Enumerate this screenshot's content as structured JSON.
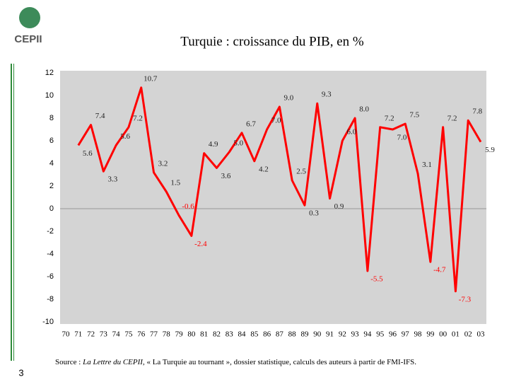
{
  "logo": "CEPII",
  "page_number": "3",
  "source": {
    "prefix": "Source : ",
    "italic": "La Lettre du CEPII",
    "rest": ", « La Turquie au tournant », dossier statistique, calculs des auteurs à partir de FMI-IFS."
  },
  "chart_data": {
    "type": "line",
    "title": "Turquie : croissance du PIB, en %",
    "categories": [
      "70",
      "71",
      "72",
      "73",
      "74",
      "75",
      "76",
      "77",
      "78",
      "79",
      "80",
      "81",
      "82",
      "83",
      "84",
      "85",
      "86",
      "87",
      "88",
      "89",
      "90",
      "91",
      "92",
      "93",
      "94",
      "95",
      "96",
      "97",
      "98",
      "99",
      "00",
      "01",
      "02",
      "03"
    ],
    "series": [
      {
        "name": null,
        "color": "#ff0000",
        "values": [
          null,
          5.6,
          7.4,
          3.3,
          5.6,
          7.2,
          10.7,
          3.2,
          1.5,
          -0.6,
          -2.4,
          4.9,
          3.6,
          5.0,
          6.7,
          4.2,
          7.0,
          9.0,
          2.5,
          0.3,
          9.3,
          0.9,
          6.0,
          8.0,
          -5.5,
          7.2,
          7.0,
          7.5,
          3.1,
          -4.7,
          7.2,
          -7.3,
          7.8,
          5.9
        ],
        "value_labels": [
          null,
          "5.6",
          "7.4",
          "3.3",
          "5.6",
          "7.2",
          "10.7",
          "3.2",
          "1.5",
          "-0.6",
          "-2.4",
          "4.9",
          "3.6",
          "5.0",
          "6.7",
          "4.2",
          "7.0",
          "9.0",
          "2.5",
          "0.3",
          "9.3",
          "0.9",
          "6.0",
          "8.0",
          "-5.5",
          "7.2",
          "7.0",
          "7.5",
          "3.1",
          "-4.7",
          "7.2",
          "-7.3",
          "7.8",
          "5.9"
        ]
      }
    ],
    "ylim": [
      -10,
      12
    ],
    "yticks": [
      -10,
      -8,
      -6,
      -4,
      -2,
      0,
      2,
      4,
      6,
      8,
      10,
      12
    ],
    "negative_label_color": "#ff0000",
    "label_color": "#222222",
    "plot_background": "#d4d4d4"
  }
}
